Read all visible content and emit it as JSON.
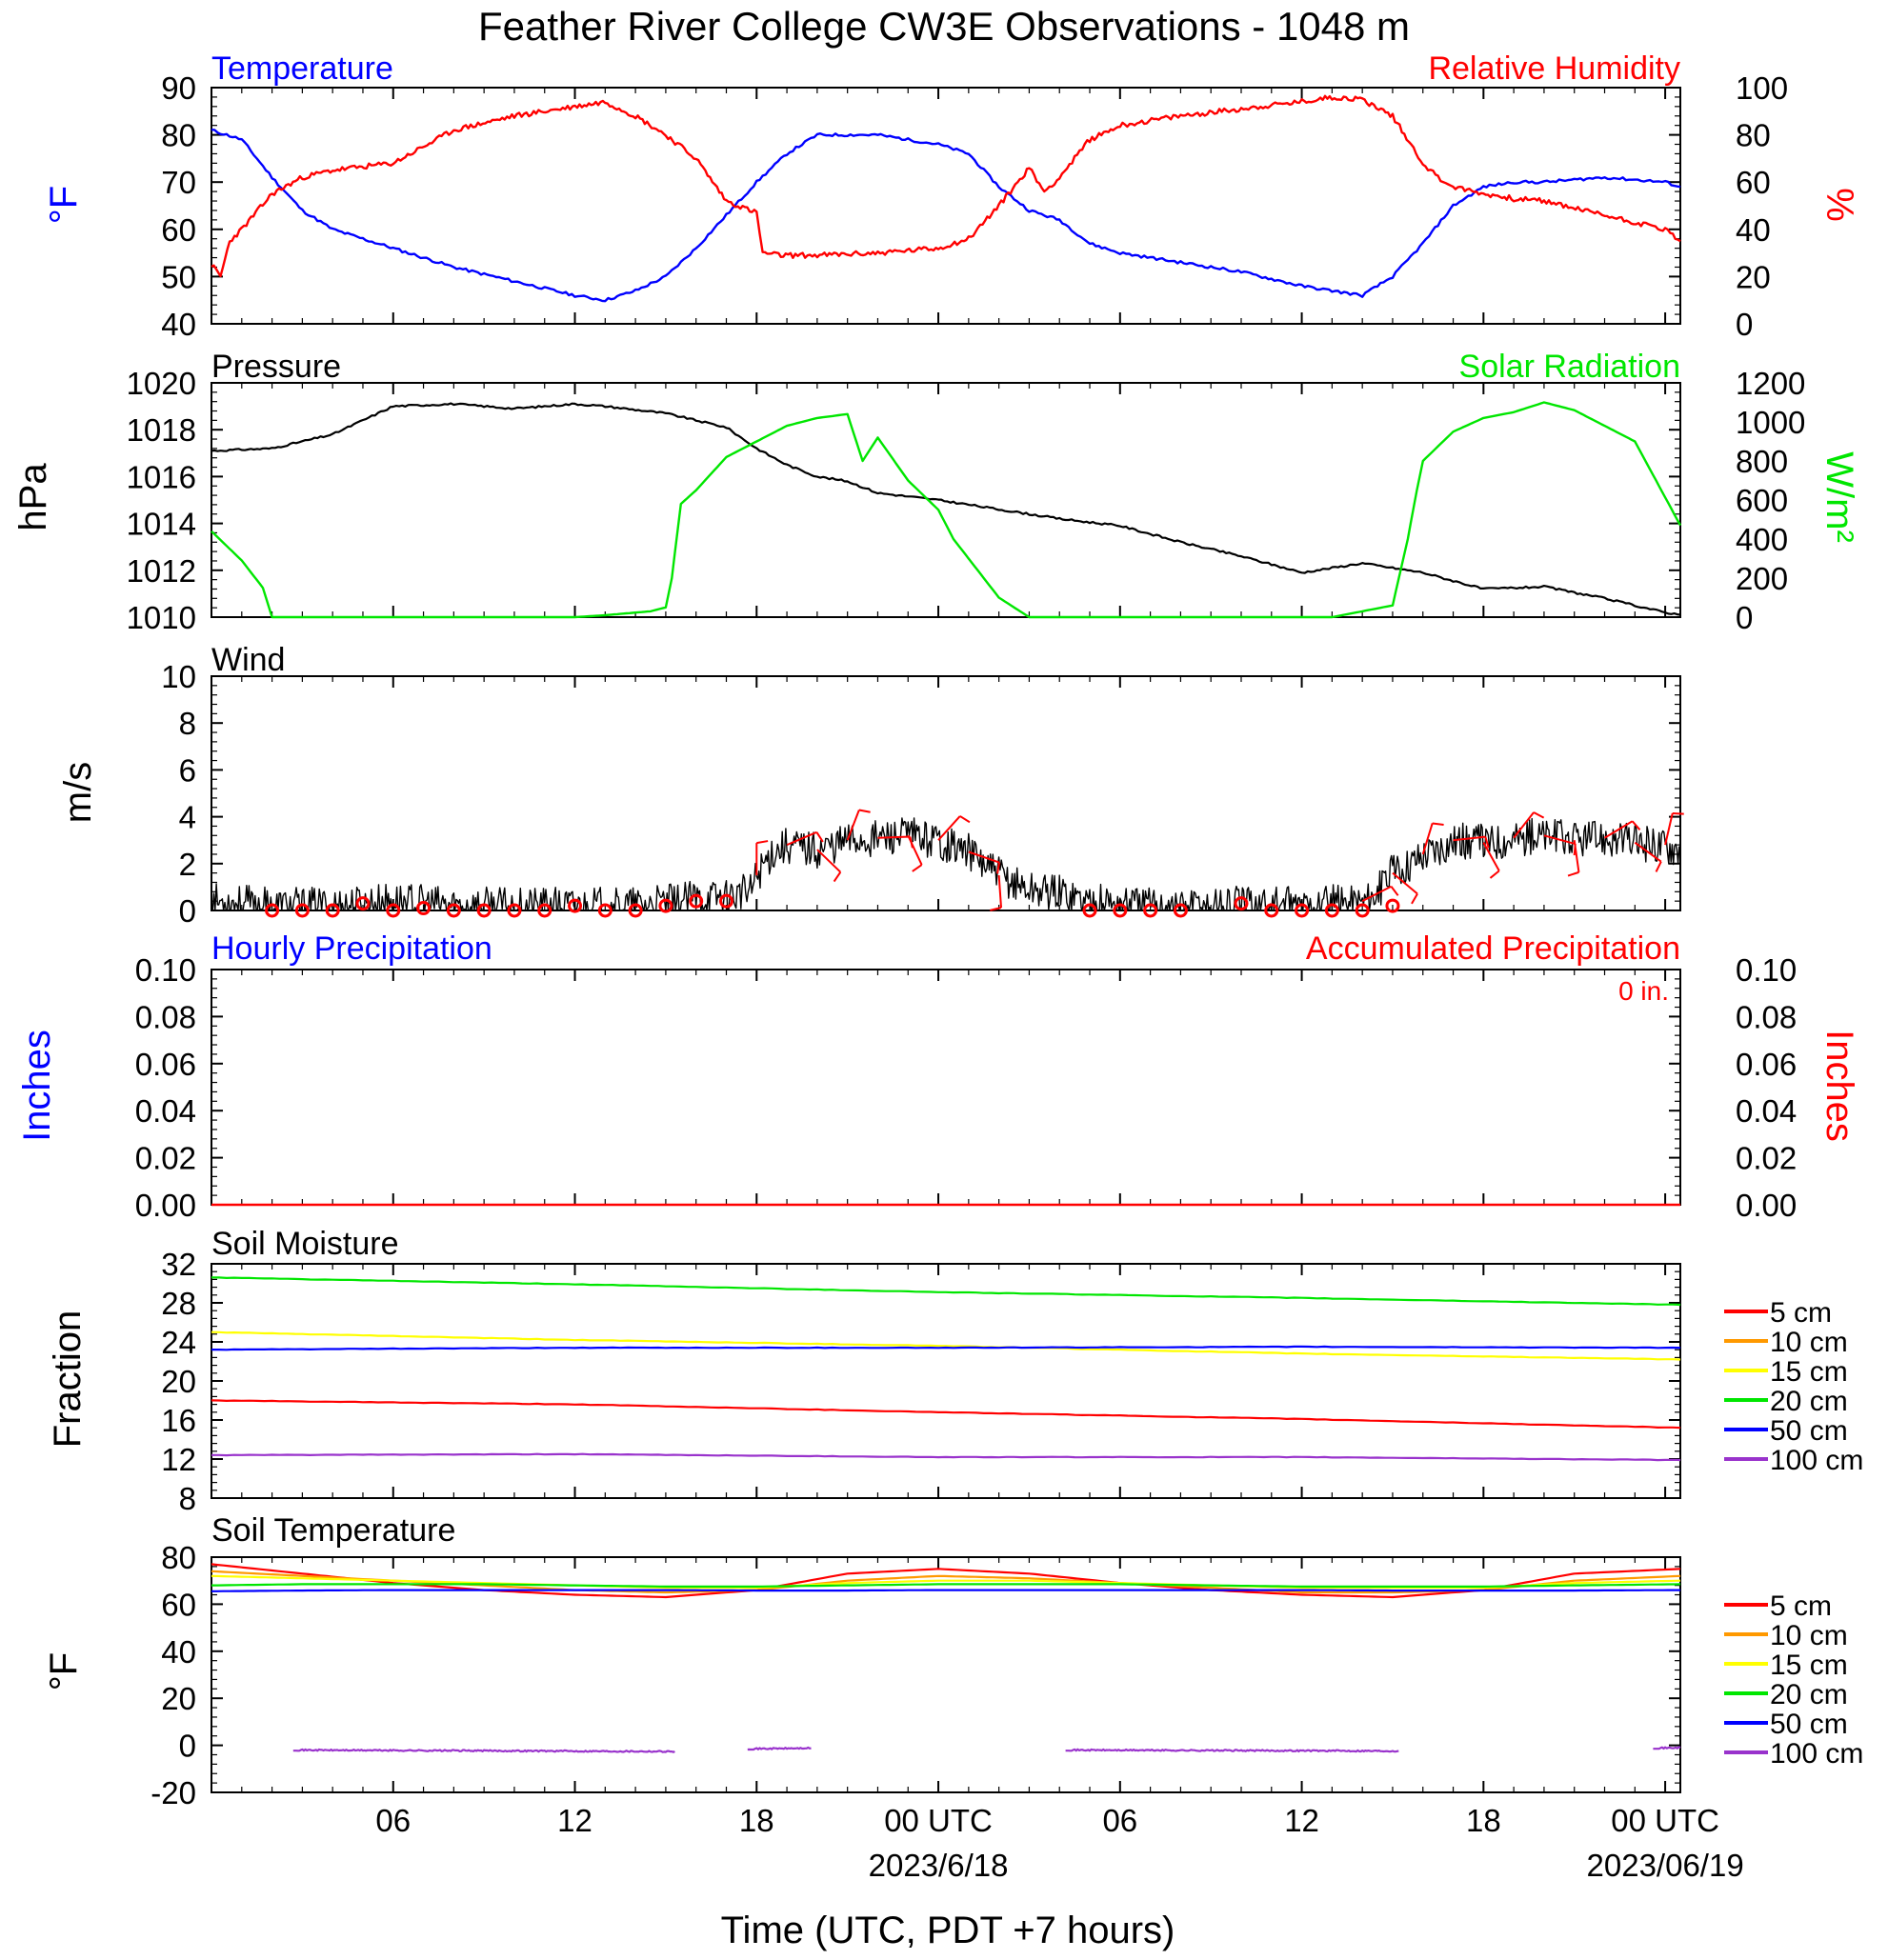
{
  "title": "Feather River College CW3E Observations - 1048 m",
  "colors": {
    "blue": "#0000ff",
    "red": "#ff0000",
    "green": "#00e600",
    "black": "#000000",
    "orange": "#ff9900",
    "yellow": "#ffff00",
    "purple": "#9933cc"
  },
  "x_axis": {
    "hours_from_start": [
      6,
      12,
      18,
      24,
      30,
      36,
      42,
      48
    ],
    "tick_labels": [
      "06",
      "12",
      "18",
      "00 UTC",
      "06",
      "12",
      "18",
      "00 UTC"
    ],
    "dates": [
      {
        "hour": 24,
        "label": "2023/6/18"
      },
      {
        "hour": 48,
        "label": "2023/06/19"
      }
    ],
    "range_hours": [
      0,
      48.5
    ],
    "xlabel": "Time (UTC, PDT +7 hours)"
  },
  "panels": {
    "temperature": {
      "left_title": "Temperature",
      "right_title": "Relative Humidity",
      "left_unit": "°F",
      "right_unit": "%",
      "left_ticks": [
        "90",
        "80",
        "70",
        "60",
        "50",
        "40"
      ],
      "right_ticks": [
        "100",
        "80",
        "60",
        "40",
        "20",
        "0"
      ]
    },
    "pressure": {
      "left_title": "Pressure",
      "right_title": "Solar Radiation",
      "left_unit": "hPa",
      "right_unit": "W/m²",
      "left_ticks": [
        "1020",
        "1018",
        "1016",
        "1014",
        "1012",
        "1010"
      ],
      "right_ticks": [
        "1200",
        "1000",
        "800",
        "600",
        "400",
        "200",
        "0"
      ]
    },
    "wind": {
      "left_title": "Wind",
      "left_unit": "m/s",
      "left_ticks": [
        "10",
        "8",
        "6",
        "4",
        "2",
        "0"
      ]
    },
    "precip": {
      "left_title": "Hourly Precipitation",
      "right_title": "Accumulated Precipitation",
      "accum_label": "0 in.",
      "left_unit": "Inches",
      "right_unit": "Inches",
      "left_ticks": [
        "0.10",
        "0.08",
        "0.06",
        "0.04",
        "0.02",
        "0.00"
      ],
      "right_ticks": [
        "0.10",
        "0.08",
        "0.06",
        "0.04",
        "0.02",
        "0.00"
      ]
    },
    "soil_moisture": {
      "left_title": "Soil Moisture",
      "left_unit": "Fraction",
      "left_ticks": [
        "32",
        "28",
        "24",
        "20",
        "16",
        "12",
        "8"
      ]
    },
    "soil_temp": {
      "left_title": "Soil Temperature",
      "left_unit": "°F",
      "left_ticks": [
        "80",
        "60",
        "40",
        "20",
        "0",
        "-20"
      ]
    }
  },
  "legend_depths": [
    "5 cm",
    "10 cm",
    "15 cm",
    "20 cm",
    "50 cm",
    "100 cm"
  ],
  "chart_data": [
    {
      "type": "line",
      "title": "Temperature",
      "ylabel": "°F",
      "ylim": [
        40,
        90
      ],
      "x_hours": [
        0,
        1,
        2,
        3,
        4,
        6,
        8,
        10,
        12,
        13,
        14,
        15,
        16,
        17,
        18,
        19,
        20,
        22,
        24,
        25,
        26,
        27,
        28,
        29,
        30,
        32,
        34,
        36,
        37,
        38,
        39,
        40,
        41,
        42,
        43,
        44,
        46,
        48,
        48.5
      ],
      "values": [
        81,
        79,
        71,
        64,
        60,
        56,
        52,
        49,
        46,
        45,
        47,
        50,
        56,
        63,
        70,
        76,
        80,
        80,
        78,
        76,
        69,
        64,
        62,
        57,
        55,
        53,
        51,
        48,
        47,
        46,
        50,
        57,
        65,
        69,
        70,
        70,
        71,
        70,
        69
      ],
      "color": "#0000ff"
    },
    {
      "type": "line",
      "title": "Relative Humidity",
      "ylabel": "%",
      "ylim": [
        0,
        100
      ],
      "x_hours": [
        0,
        0.3,
        0.6,
        1,
        2,
        3,
        4,
        6,
        8,
        10,
        12,
        13,
        14,
        15,
        16,
        17,
        18,
        18.2,
        18.8,
        20,
        22,
        24,
        25,
        26,
        27,
        27.5,
        28,
        28.5,
        29,
        30,
        32,
        34,
        36,
        37,
        38,
        39,
        40,
        40.5,
        41,
        42,
        43,
        44,
        46,
        48,
        48.5
      ],
      "values": [
        25,
        20,
        35,
        40,
        55,
        62,
        65,
        68,
        82,
        88,
        92,
        94,
        88,
        80,
        70,
        52,
        47,
        30,
        29,
        29,
        30,
        32,
        36,
        50,
        66,
        56,
        62,
        70,
        78,
        84,
        88,
        91,
        94,
        96,
        95,
        88,
        68,
        62,
        58,
        55,
        53,
        52,
        46,
        40,
        35
      ],
      "color": "#ff0000"
    },
    {
      "type": "line",
      "title": "Pressure",
      "ylabel": "hPa",
      "ylim": [
        1010,
        1020
      ],
      "x_hours": [
        0,
        2,
        4,
        6,
        8,
        10,
        12,
        13,
        15,
        17,
        18,
        19,
        20,
        21,
        22,
        24,
        26,
        28,
        30,
        32,
        34,
        36,
        38,
        40,
        42,
        44,
        46,
        48,
        48.5
      ],
      "values": [
        1017.1,
        1017.2,
        1017.8,
        1019.0,
        1019.1,
        1018.9,
        1019.1,
        1019.0,
        1018.7,
        1018.1,
        1017.2,
        1016.5,
        1016.0,
        1015.8,
        1015.3,
        1015.0,
        1014.6,
        1014.2,
        1013.9,
        1013.2,
        1012.6,
        1011.9,
        1012.3,
        1011.9,
        1011.2,
        1011.3,
        1010.8,
        1010.2,
        1010.1
      ],
      "color": "#000000"
    },
    {
      "type": "line",
      "title": "Solar Radiation",
      "ylabel": "W/m²",
      "ylim": [
        0,
        1200
      ],
      "x_hours": [
        0,
        1,
        1.7,
        2,
        12,
        13,
        14.5,
        15,
        15.2,
        15.5,
        16,
        17,
        18,
        19,
        20,
        21,
        21.5,
        22,
        23,
        24,
        24.5,
        25,
        25.5,
        26,
        27,
        28,
        33,
        37,
        38,
        39,
        39.5,
        39.8,
        40,
        41,
        42,
        43,
        44,
        45,
        46,
        47,
        48.5
      ],
      "values": [
        440,
        290,
        150,
        0,
        0,
        10,
        30,
        50,
        200,
        580,
        650,
        820,
        900,
        980,
        1020,
        1040,
        800,
        920,
        700,
        550,
        400,
        300,
        200,
        100,
        0,
        0,
        0,
        0,
        30,
        60,
        400,
        650,
        800,
        950,
        1020,
        1050,
        1100,
        1060,
        980,
        900,
        470
      ],
      "color": "#00e600"
    },
    {
      "type": "line",
      "title": "Wind",
      "ylabel": "m/s",
      "ylim": [
        0,
        10
      ],
      "x_hours": [
        0,
        2,
        4,
        6,
        8,
        10,
        12,
        14,
        15,
        16,
        17,
        17.8,
        18,
        18.5,
        19,
        20,
        21,
        22,
        23,
        24,
        25,
        26,
        27,
        28,
        29,
        30,
        32,
        34,
        36,
        38,
        38.5,
        39,
        40,
        41,
        42,
        43,
        44,
        45,
        46,
        47,
        48,
        48.5
      ],
      "values": [
        0.4,
        0.2,
        0.2,
        0.4,
        0.2,
        0.2,
        0.2,
        0.2,
        0.3,
        0.5,
        0.6,
        0.8,
        1.5,
        2.5,
        2.8,
        2.6,
        3.0,
        3.1,
        3.2,
        3.0,
        2.5,
        1.5,
        0.9,
        0.8,
        0.4,
        0.3,
        0.2,
        0.3,
        0.2,
        0.4,
        0.8,
        1.6,
        2.4,
        3.0,
        2.9,
        3.1,
        3.2,
        3.0,
        3.1,
        2.9,
        2.8,
        2.7
      ],
      "color": "#000000"
    },
    {
      "type": "line",
      "title": "Hourly Precipitation",
      "ylabel": "Inches",
      "ylim": [
        0,
        0.1
      ],
      "x_hours": [
        0,
        48.5
      ],
      "values": [
        0,
        0
      ],
      "color": "#0000ff"
    },
    {
      "type": "line",
      "title": "Soil Moisture",
      "ylabel": "Fraction",
      "ylim": [
        8,
        32
      ],
      "x_hours": [
        0,
        12,
        24,
        36,
        48.5
      ],
      "series": [
        {
          "name": "5 cm",
          "color": "#ff0000",
          "values": [
            18.0,
            17.6,
            16.8,
            16.1,
            15.2
          ]
        },
        {
          "name": "15 cm",
          "color": "#ffff00",
          "values": [
            25.0,
            24.2,
            23.6,
            22.8,
            22.2
          ]
        },
        {
          "name": "20 cm",
          "color": "#00e600",
          "values": [
            30.6,
            29.9,
            29.1,
            28.5,
            27.8
          ]
        },
        {
          "name": "50 cm",
          "color": "#0000ff",
          "values": [
            23.2,
            23.4,
            23.4,
            23.5,
            23.4
          ]
        },
        {
          "name": "100 cm",
          "color": "#9933cc",
          "values": [
            12.4,
            12.5,
            12.2,
            12.2,
            11.9
          ]
        }
      ]
    },
    {
      "type": "line",
      "title": "Soil Temperature",
      "ylabel": "°F",
      "ylim": [
        -20,
        80
      ],
      "x_hours": [
        0,
        3,
        6,
        9,
        12,
        15,
        18,
        21,
        24,
        27,
        30,
        33,
        36,
        39,
        42,
        45,
        48.5
      ],
      "series": [
        {
          "name": "5 cm",
          "color": "#ff0000",
          "values": [
            77,
            73,
            69,
            66,
            64,
            63,
            66,
            73,
            75,
            73,
            69,
            66,
            64,
            63,
            66,
            73,
            75
          ]
        },
        {
          "name": "10 cm",
          "color": "#ff9900",
          "values": [
            74,
            72,
            70,
            68,
            66,
            65,
            66,
            70,
            72,
            71,
            69,
            67,
            65,
            65,
            66,
            70,
            72
          ]
        },
        {
          "name": "15 cm",
          "color": "#ffff00",
          "values": [
            72,
            71,
            70,
            69,
            68,
            67,
            67,
            69,
            70,
            70,
            69,
            68,
            67,
            67,
            67,
            69,
            70
          ]
        },
        {
          "name": "20 cm",
          "color": "#00e600",
          "values": [
            68,
            68.5,
            68.5,
            68.5,
            68,
            67.5,
            67.5,
            68,
            68.5,
            68.5,
            68.5,
            68,
            67.5,
            67.5,
            67.5,
            68,
            68.5
          ]
        },
        {
          "name": "50 cm",
          "color": "#0000ff",
          "values": [
            65.5,
            65.8,
            66,
            66,
            66,
            66,
            65.8,
            65.8,
            66,
            66,
            66,
            66,
            66,
            65.8,
            65.8,
            65.8,
            66
          ]
        },
        {
          "name": "100 cm",
          "color": "#9933cc",
          "segments": [
            {
              "x_hours": [
                2.7,
                15.3
              ],
              "values": [
                -2,
                -2.6
              ]
            },
            {
              "x_hours": [
                17.7,
                19.8
              ],
              "values": [
                -1.5,
                -1.2
              ]
            },
            {
              "x_hours": [
                28.2,
                39.2
              ],
              "values": [
                -2,
                -2.4
              ]
            },
            {
              "x_hours": [
                47.6,
                48.5
              ],
              "values": [
                -1.2,
                -1
              ]
            }
          ]
        }
      ]
    }
  ],
  "wind_markers": {
    "calm_hours": [
      2,
      3,
      4,
      5,
      6,
      7,
      8,
      9,
      10,
      11,
      12,
      13,
      14,
      15,
      16,
      17,
      29,
      30,
      31,
      32,
      34,
      35,
      36,
      37,
      38,
      39
    ],
    "calm_values": [
      0,
      0,
      0,
      0.3,
      0,
      0.1,
      0,
      0,
      0,
      0,
      0.2,
      0,
      0,
      0.2,
      0.4,
      0.4,
      0,
      0,
      0,
      0,
      0.3,
      0,
      0,
      0,
      0,
      0.2
    ],
    "barb_hours": [
      18,
      19,
      20,
      21,
      22,
      23,
      24,
      25,
      26,
      38,
      39,
      40,
      41,
      42,
      43,
      44,
      45,
      46,
      47,
      48
    ]
  }
}
